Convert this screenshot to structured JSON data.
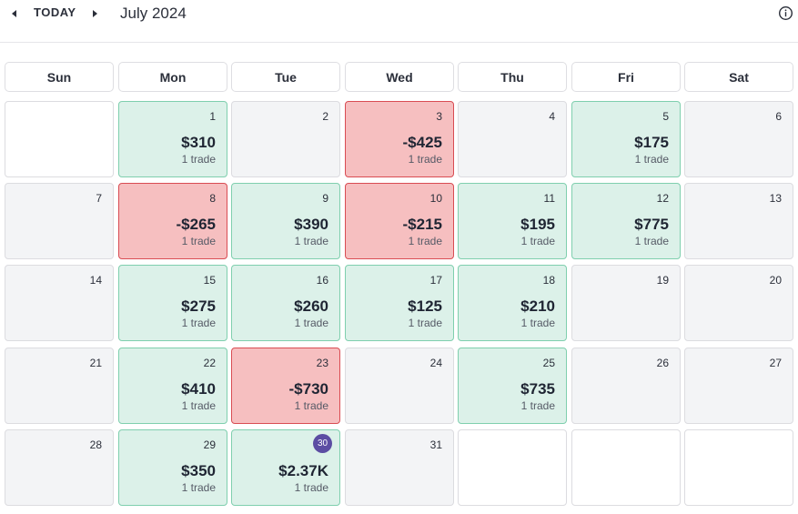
{
  "toolbar": {
    "today_label": "TODAY",
    "month_title": "July 2024"
  },
  "icons": {
    "prev": "caret-left-icon",
    "next": "caret-right-icon",
    "info": "info-icon"
  },
  "colors": {
    "profit_bg": "#dcf1e9",
    "profit_border": "#7fcfae",
    "loss_bg": "#f6bfc0",
    "loss_border": "#d94c53",
    "today_badge": "#5c4da3"
  },
  "weekdays": [
    "Sun",
    "Mon",
    "Tue",
    "Wed",
    "Thu",
    "Fri",
    "Sat"
  ],
  "weeks": [
    [
      {
        "blank": true
      },
      {
        "day": "1",
        "pnl": "$310",
        "trades": "1 trade",
        "status": "profit"
      },
      {
        "day": "2",
        "status": "none"
      },
      {
        "day": "3",
        "pnl": "-$425",
        "trades": "1 trade",
        "status": "loss"
      },
      {
        "day": "4",
        "status": "none"
      },
      {
        "day": "5",
        "pnl": "$175",
        "trades": "1 trade",
        "status": "profit"
      },
      {
        "day": "6",
        "status": "none"
      }
    ],
    [
      {
        "day": "7",
        "status": "none"
      },
      {
        "day": "8",
        "pnl": "-$265",
        "trades": "1 trade",
        "status": "loss"
      },
      {
        "day": "9",
        "pnl": "$390",
        "trades": "1 trade",
        "status": "profit"
      },
      {
        "day": "10",
        "pnl": "-$215",
        "trades": "1 trade",
        "status": "loss"
      },
      {
        "day": "11",
        "pnl": "$195",
        "trades": "1 trade",
        "status": "profit"
      },
      {
        "day": "12",
        "pnl": "$775",
        "trades": "1 trade",
        "status": "profit"
      },
      {
        "day": "13",
        "status": "none"
      }
    ],
    [
      {
        "day": "14",
        "status": "none"
      },
      {
        "day": "15",
        "pnl": "$275",
        "trades": "1 trade",
        "status": "profit"
      },
      {
        "day": "16",
        "pnl": "$260",
        "trades": "1 trade",
        "status": "profit"
      },
      {
        "day": "17",
        "pnl": "$125",
        "trades": "1 trade",
        "status": "profit"
      },
      {
        "day": "18",
        "pnl": "$210",
        "trades": "1 trade",
        "status": "profit"
      },
      {
        "day": "19",
        "status": "none"
      },
      {
        "day": "20",
        "status": "none"
      }
    ],
    [
      {
        "day": "21",
        "status": "none"
      },
      {
        "day": "22",
        "pnl": "$410",
        "trades": "1 trade",
        "status": "profit"
      },
      {
        "day": "23",
        "pnl": "-$730",
        "trades": "1 trade",
        "status": "loss"
      },
      {
        "day": "24",
        "status": "none"
      },
      {
        "day": "25",
        "pnl": "$735",
        "trades": "1 trade",
        "status": "profit"
      },
      {
        "day": "26",
        "status": "none"
      },
      {
        "day": "27",
        "status": "none"
      }
    ],
    [
      {
        "day": "28",
        "status": "none"
      },
      {
        "day": "29",
        "pnl": "$350",
        "trades": "1 trade",
        "status": "profit"
      },
      {
        "day": "30",
        "pnl": "$2.37K",
        "trades": "1 trade",
        "status": "profit",
        "today": true
      },
      {
        "day": "31",
        "status": "none"
      },
      {
        "blank": true
      },
      {
        "blank": true
      },
      {
        "blank": true
      }
    ]
  ]
}
